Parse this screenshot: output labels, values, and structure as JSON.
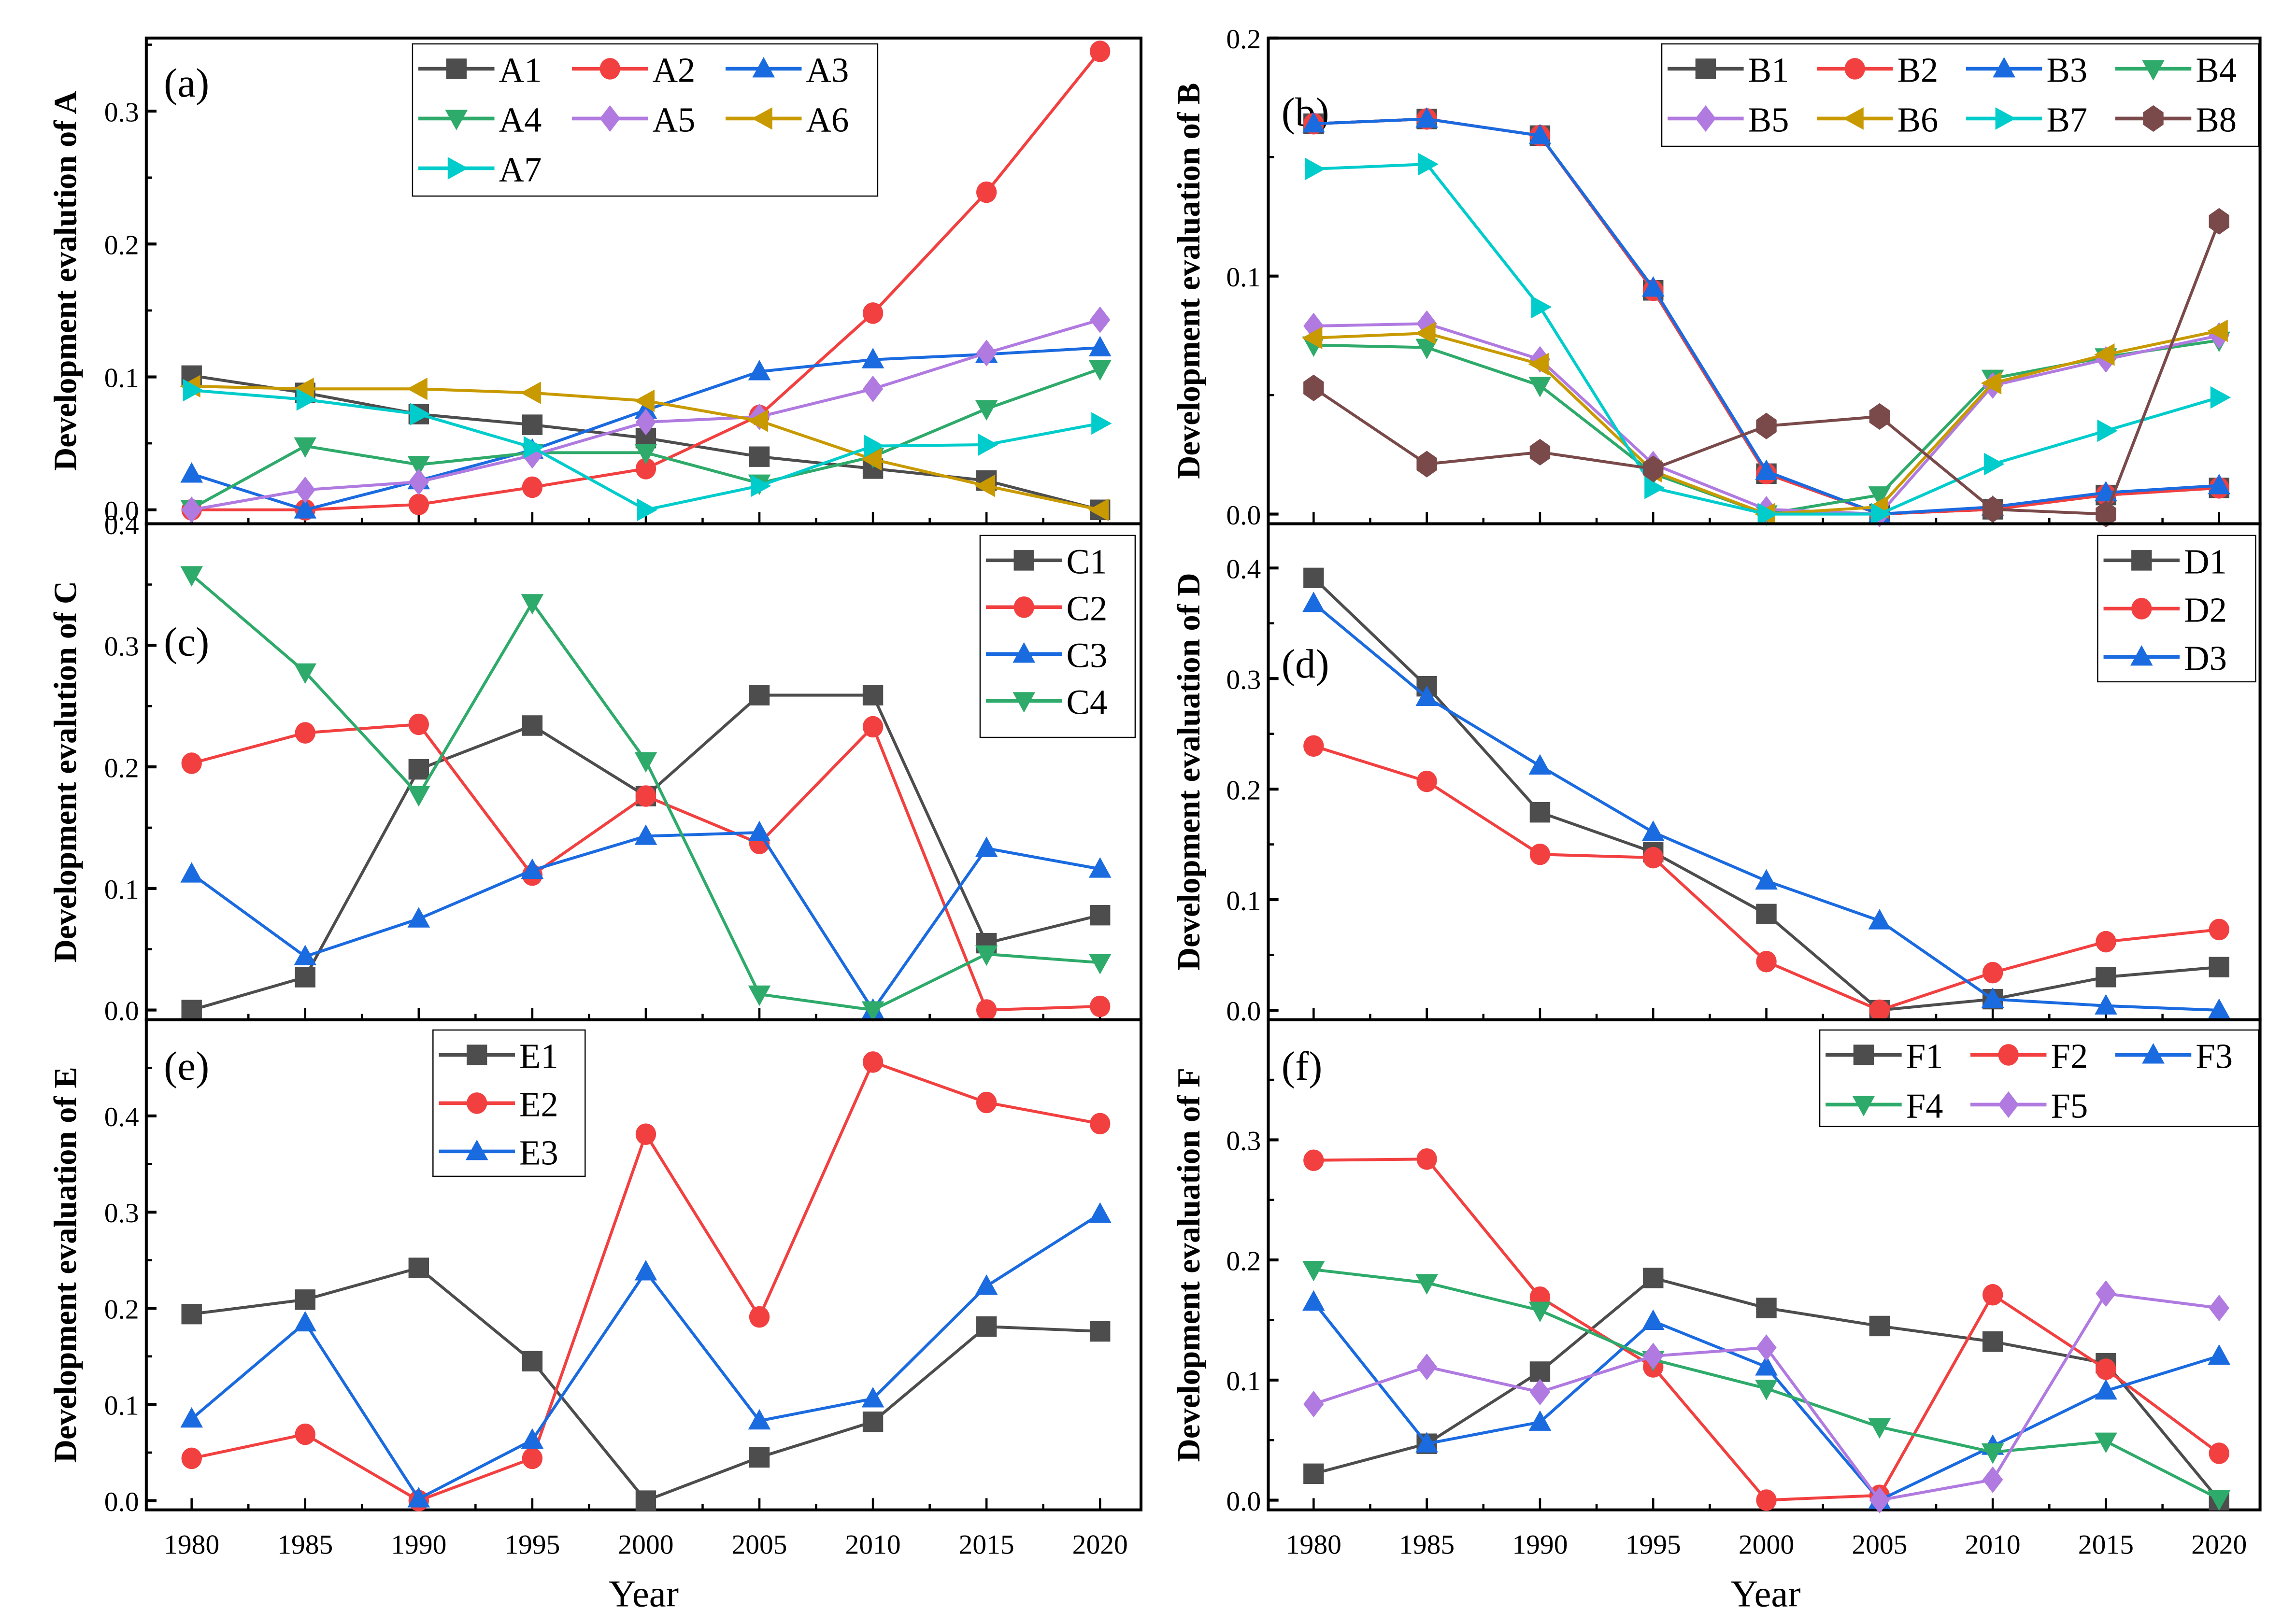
{
  "figure": {
    "xlabel": "Year",
    "xticks": [
      "1980",
      "1985",
      "1990",
      "1995",
      "2000",
      "2005",
      "2010",
      "2015",
      "2020"
    ]
  },
  "colors": {
    "black": "#4d4d4d",
    "red": "#f24040",
    "blue": "#1a6ae0",
    "green": "#2eaa6a",
    "purple": "#b07ae0",
    "gold": "#c99a00",
    "cyan": "#00cccc",
    "brown": "#7a4a4a"
  },
  "chart_data": [
    {
      "id": "a",
      "panel_label": "(a)",
      "type": "line",
      "ylabel": "Development evalution of A",
      "x": [
        1980,
        1985,
        1990,
        1995,
        2000,
        2005,
        2010,
        2015,
        2020
      ],
      "ylim": [
        -0.005,
        0.355
      ],
      "yticks": [
        "0.0",
        "0.1",
        "0.2",
        "0.3"
      ],
      "ytick_values": [
        0,
        0.1,
        0.2,
        0.3
      ],
      "legend_position": "top-center",
      "legend_columns": 3,
      "series": [
        {
          "name": "A1",
          "color": "black",
          "marker": "square",
          "values": [
            0.101,
            0.088,
            0.072,
            0.064,
            0.054,
            0.04,
            0.031,
            0.022,
            0.0
          ]
        },
        {
          "name": "A2",
          "color": "red",
          "marker": "circle",
          "values": [
            0.0,
            0.0,
            0.004,
            0.017,
            0.031,
            0.071,
            0.148,
            0.239,
            0.345
          ]
        },
        {
          "name": "A3",
          "color": "blue",
          "marker": "triangle-up",
          "values": [
            0.027,
            0.0,
            0.022,
            0.045,
            0.075,
            0.104,
            0.113,
            0.117,
            0.122
          ]
        },
        {
          "name": "A4",
          "color": "green",
          "marker": "triangle-down",
          "values": [
            0.001,
            0.048,
            0.034,
            0.043,
            0.043,
            0.02,
            0.04,
            0.076,
            0.106
          ]
        },
        {
          "name": "A5",
          "color": "purple",
          "marker": "diamond",
          "values": [
            0.0,
            0.015,
            0.021,
            0.041,
            0.066,
            0.07,
            0.091,
            0.118,
            0.143
          ]
        },
        {
          "name": "A6",
          "color": "gold",
          "marker": "triangle-left",
          "values": [
            0.093,
            0.091,
            0.091,
            0.088,
            0.082,
            0.067,
            0.038,
            0.018,
            0.0
          ]
        },
        {
          "name": "A7",
          "color": "cyan",
          "marker": "triangle-right",
          "values": [
            0.09,
            0.083,
            0.072,
            0.047,
            0.0,
            0.018,
            0.048,
            0.049,
            0.065
          ]
        }
      ]
    },
    {
      "id": "b",
      "panel_label": "(b)",
      "type": "line",
      "ylabel": "Development evaluation of B",
      "x": [
        1980,
        1985,
        1990,
        1995,
        2000,
        2005,
        2010,
        2015,
        2020
      ],
      "ylim": [
        -0.001,
        0.2
      ],
      "yticks": [
        "0.0",
        "0.1",
        "0.2"
      ],
      "ytick_values": [
        0,
        0.1,
        0.2
      ],
      "legend_position": "top-right",
      "legend_columns": 4,
      "series": [
        {
          "name": "B1",
          "color": "black",
          "marker": "square",
          "values": [
            0.164,
            0.166,
            0.159,
            0.094,
            0.017,
            0.0,
            0.002,
            0.008,
            0.011
          ]
        },
        {
          "name": "B2",
          "color": "red",
          "marker": "circle",
          "values": [
            0.164,
            0.166,
            0.159,
            0.094,
            0.017,
            0.0,
            0.002,
            0.008,
            0.011
          ]
        },
        {
          "name": "B3",
          "color": "blue",
          "marker": "triangle-up",
          "values": [
            0.164,
            0.166,
            0.159,
            0.095,
            0.018,
            0.0,
            0.003,
            0.009,
            0.012
          ]
        },
        {
          "name": "B4",
          "color": "green",
          "marker": "triangle-down",
          "values": [
            0.071,
            0.07,
            0.054,
            0.017,
            0.0,
            0.008,
            0.057,
            0.066,
            0.073
          ]
        },
        {
          "name": "B5",
          "color": "purple",
          "marker": "diamond",
          "values": [
            0.079,
            0.08,
            0.065,
            0.021,
            0.002,
            0.0,
            0.054,
            0.065,
            0.075
          ]
        },
        {
          "name": "B6",
          "color": "gold",
          "marker": "triangle-left",
          "values": [
            0.074,
            0.076,
            0.063,
            0.018,
            0.0,
            0.003,
            0.055,
            0.067,
            0.077
          ]
        },
        {
          "name": "B7",
          "color": "cyan",
          "marker": "triangle-right",
          "values": [
            0.145,
            0.147,
            0.087,
            0.011,
            0.0,
            0.0,
            0.021,
            0.035,
            0.049
          ]
        },
        {
          "name": "B8",
          "color": "brown",
          "marker": "hexagon",
          "values": [
            0.053,
            0.021,
            0.026,
            0.019,
            0.037,
            0.041,
            0.002,
            0.0,
            0.123
          ]
        }
      ]
    },
    {
      "id": "c",
      "panel_label": "(c)",
      "type": "line",
      "ylabel": "Development evalution of C",
      "x": [
        1980,
        1985,
        1990,
        1995,
        2000,
        2005,
        2010,
        2015,
        2020
      ],
      "ylim": [
        -0.002,
        0.4
      ],
      "yticks": [
        "0.0",
        "0.1",
        "0.2",
        "0.3",
        "0.4"
      ],
      "ytick_values": [
        0,
        0.1,
        0.2,
        0.3,
        0.4
      ],
      "legend_position": "top-right",
      "legend_columns": 1,
      "series": [
        {
          "name": "C1",
          "color": "black",
          "marker": "square",
          "values": [
            0.0,
            0.027,
            0.198,
            0.234,
            0.176,
            0.259,
            0.259,
            0.055,
            0.078
          ]
        },
        {
          "name": "C2",
          "color": "red",
          "marker": "circle",
          "values": [
            0.203,
            0.228,
            0.235,
            0.111,
            0.176,
            0.137,
            0.233,
            0.0,
            0.003
          ]
        },
        {
          "name": "C3",
          "color": "blue",
          "marker": "triangle-up",
          "values": [
            0.112,
            0.044,
            0.075,
            0.115,
            0.143,
            0.146,
            0.0,
            0.133,
            0.116
          ]
        },
        {
          "name": "C4",
          "color": "green",
          "marker": "triangle-down",
          "values": [
            0.358,
            0.278,
            0.177,
            0.335,
            0.205,
            0.013,
            0.0,
            0.046,
            0.039
          ]
        }
      ]
    },
    {
      "id": "d",
      "panel_label": "(d)",
      "type": "line",
      "ylabel": "Development evaluation of D",
      "x": [
        1980,
        1985,
        1990,
        1995,
        2000,
        2005,
        2010,
        2015,
        2020
      ],
      "ylim": [
        -0.002,
        0.44
      ],
      "yticks": [
        "0.0",
        "0.1",
        "0.2",
        "0.3",
        "0.4"
      ],
      "ytick_values": [
        0,
        0.1,
        0.2,
        0.3,
        0.4
      ],
      "legend_position": "top-right",
      "legend_columns": 1,
      "series": [
        {
          "name": "D1",
          "color": "black",
          "marker": "square",
          "values": [
            0.391,
            0.293,
            0.179,
            0.143,
            0.087,
            0.0,
            0.01,
            0.03,
            0.039
          ]
        },
        {
          "name": "D2",
          "color": "red",
          "marker": "circle",
          "values": [
            0.239,
            0.207,
            0.141,
            0.138,
            0.044,
            0.0,
            0.034,
            0.062,
            0.073
          ]
        },
        {
          "name": "D3",
          "color": "blue",
          "marker": "triangle-up",
          "values": [
            0.368,
            0.283,
            0.221,
            0.161,
            0.117,
            0.081,
            0.01,
            0.004,
            0.0
          ]
        }
      ]
    },
    {
      "id": "e",
      "panel_label": "(e)",
      "type": "line",
      "ylabel": "Development evaluation of E",
      "x": [
        1980,
        1985,
        1990,
        1995,
        2000,
        2005,
        2010,
        2015,
        2020
      ],
      "ylim": [
        -0.002,
        0.5
      ],
      "yticks": [
        "0.0",
        "0.1",
        "0.2",
        "0.3",
        "0.4"
      ],
      "ytick_values": [
        0,
        0.1,
        0.2,
        0.3,
        0.4
      ],
      "legend_position": "top-center",
      "legend_columns": 1,
      "series": [
        {
          "name": "E1",
          "color": "black",
          "marker": "square",
          "values": [
            0.194,
            0.209,
            0.242,
            0.145,
            0.0,
            0.045,
            0.082,
            0.181,
            0.176
          ]
        },
        {
          "name": "E2",
          "color": "red",
          "marker": "circle",
          "values": [
            0.044,
            0.069,
            0.0,
            0.044,
            0.381,
            0.191,
            0.456,
            0.414,
            0.392
          ]
        },
        {
          "name": "E3",
          "color": "blue",
          "marker": "triangle-up",
          "values": [
            0.085,
            0.185,
            0.002,
            0.063,
            0.238,
            0.083,
            0.106,
            0.223,
            0.298
          ]
        }
      ]
    },
    {
      "id": "f",
      "panel_label": "(f)",
      "type": "line",
      "ylabel": "Development evaluation of F",
      "x": [
        1980,
        1985,
        1990,
        1995,
        2000,
        2005,
        2010,
        2015,
        2020
      ],
      "ylim": [
        -0.002,
        0.4
      ],
      "yticks": [
        "0.0",
        "0.1",
        "0.2",
        "0.3"
      ],
      "ytick_values": [
        0,
        0.1,
        0.2,
        0.3
      ],
      "legend_position": "top-right",
      "legend_columns": 3,
      "series": [
        {
          "name": "F1",
          "color": "black",
          "marker": "square",
          "values": [
            0.022,
            0.047,
            0.107,
            0.185,
            0.16,
            0.145,
            0.132,
            0.114,
            0.0
          ]
        },
        {
          "name": "F2",
          "color": "red",
          "marker": "circle",
          "values": [
            0.283,
            0.284,
            0.169,
            0.111,
            0.0,
            0.004,
            0.171,
            0.109,
            0.039
          ]
        },
        {
          "name": "F3",
          "color": "blue",
          "marker": "triangle-up",
          "values": [
            0.165,
            0.047,
            0.065,
            0.149,
            0.111,
            0.0,
            0.045,
            0.091,
            0.12
          ]
        },
        {
          "name": "F4",
          "color": "green",
          "marker": "triangle-down",
          "values": [
            0.192,
            0.181,
            0.158,
            0.117,
            0.093,
            0.061,
            0.04,
            0.049,
            0.001
          ]
        },
        {
          "name": "F5",
          "color": "purple",
          "marker": "diamond",
          "values": [
            0.08,
            0.111,
            0.09,
            0.12,
            0.127,
            0.0,
            0.017,
            0.172,
            0.16
          ]
        }
      ]
    }
  ]
}
